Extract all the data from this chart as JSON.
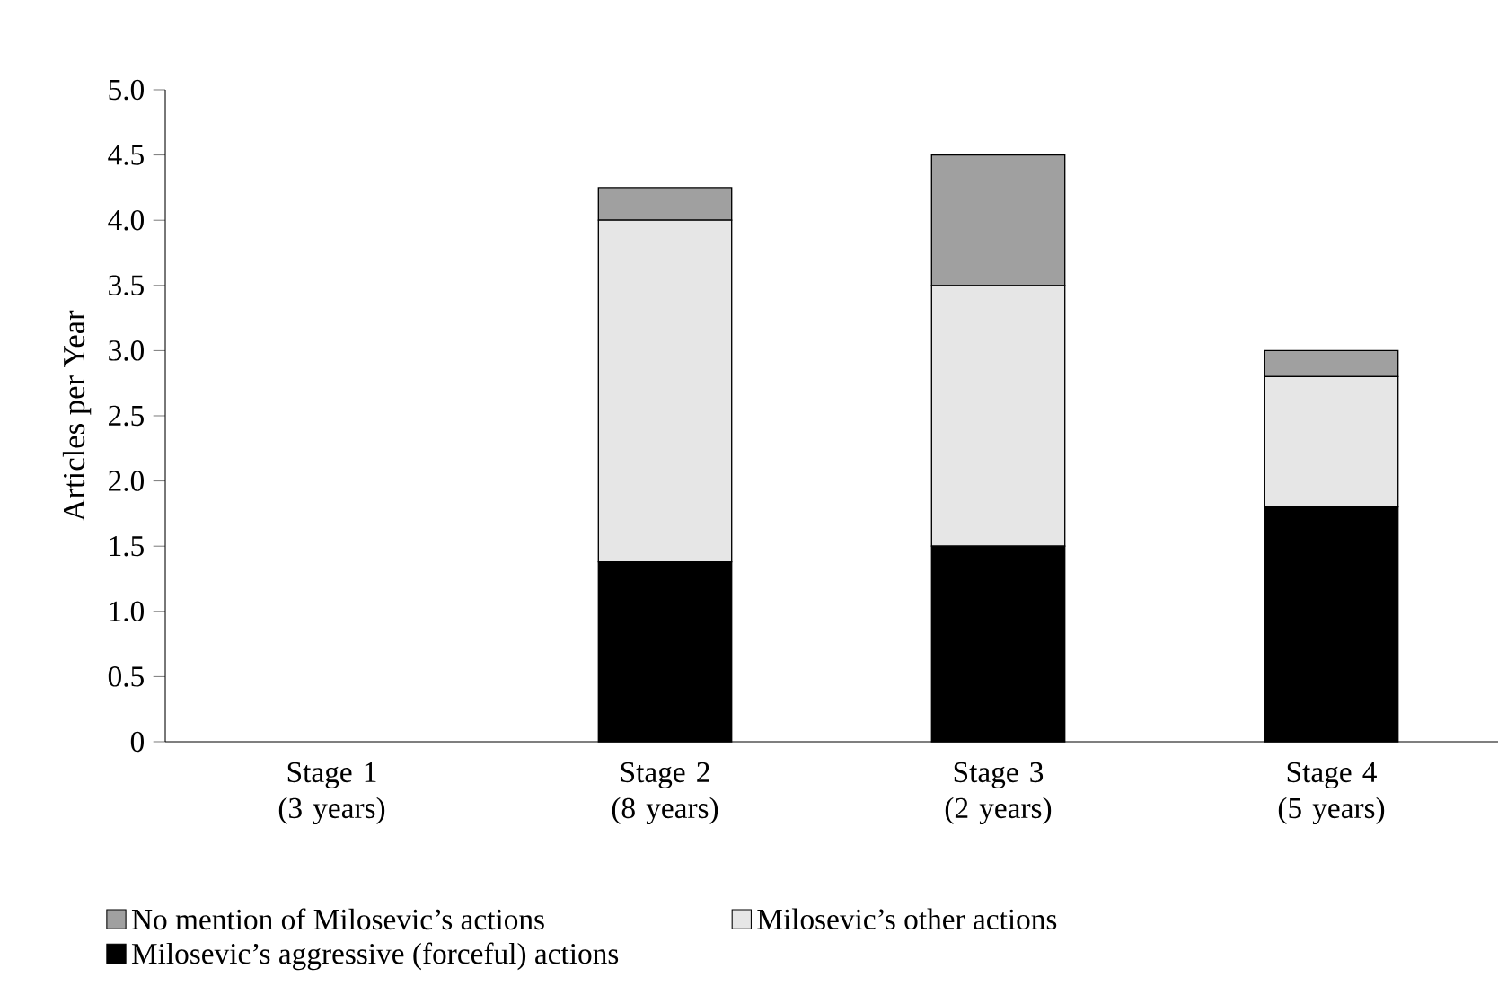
{
  "chart_data": {
    "type": "bar",
    "stacked": true,
    "legend": "bottom",
    "ylabel": "Articles per Year",
    "categories": [
      "Stage 1 (3 years)",
      "Stage 2 (8 years)",
      "Stage 3 (2 years)",
      "Stage 4 (5 years)"
    ],
    "series": [
      {
        "name": "Milosevic’s aggressive (forceful) actions",
        "color": "#000000",
        "values": [
          0,
          1.38,
          1.5,
          1.8
        ]
      },
      {
        "name": "Milosevic’s other actions",
        "color": "#e6e6e6",
        "values": [
          0,
          2.62,
          2.0,
          1.0
        ]
      },
      {
        "name": "No mention of Milosevic’s actions",
        "color": "#a0a0a0",
        "values": [
          0,
          0.25,
          1.0,
          0.2
        ]
      }
    ],
    "ylim": [
      0,
      5
    ],
    "yticks": [
      0,
      0.5,
      {
        "value": 1,
        "label": "1.0"
      },
      1.5,
      {
        "value": 2,
        "label": "2.0"
      },
      2.5,
      {
        "value": 3,
        "label": "3.0"
      },
      3.5,
      {
        "value": 4,
        "label": "4.0"
      },
      4.5,
      {
        "value": 5,
        "label": "5.0"
      }
    ]
  }
}
